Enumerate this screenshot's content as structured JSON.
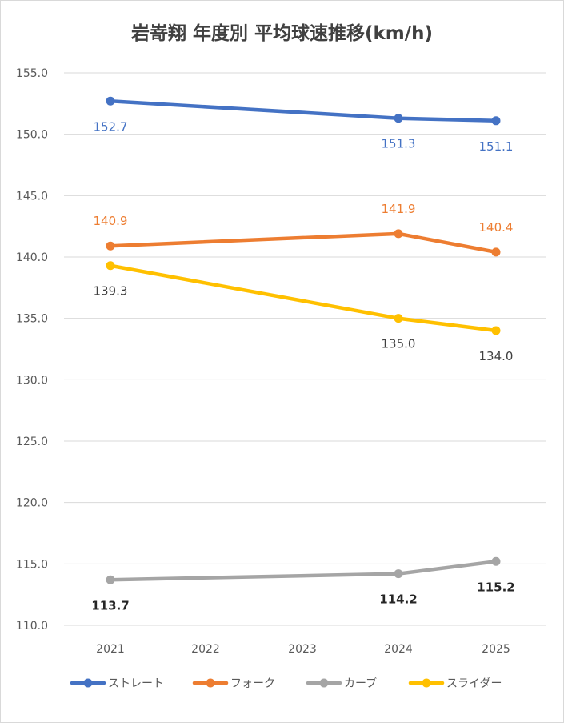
{
  "chart_data": {
    "type": "line",
    "title": "岩嵜翔 年度別 平均球速推移(km/h)",
    "categories": [
      "2021",
      "2022",
      "2023",
      "2024",
      "2025"
    ],
    "ylim": [
      110.0,
      155.0
    ],
    "yticks": [
      "110.0",
      "115.0",
      "120.0",
      "125.0",
      "130.0",
      "135.0",
      "140.0",
      "145.0",
      "150.0",
      "155.0"
    ],
    "grid": true,
    "legend_position": "bottom",
    "series": [
      {
        "name": "ストレート",
        "color": "#4472C4",
        "label_color": "#4472C4",
        "label_bold": false,
        "label_pos": "below",
        "values": [
          152.7,
          null,
          null,
          151.3,
          151.1
        ],
        "labels": [
          "152.7",
          "",
          "",
          "151.3",
          "151.1"
        ]
      },
      {
        "name": "フォーク",
        "color": "#ED7D31",
        "label_color": "#ED7D31",
        "label_bold": false,
        "label_pos": "above",
        "values": [
          140.9,
          null,
          null,
          141.9,
          140.4
        ],
        "labels": [
          "140.9",
          "",
          "",
          "141.9",
          "140.4"
        ]
      },
      {
        "name": "カーブ",
        "color": "#A5A5A5",
        "label_color": "#262626",
        "label_bold": true,
        "label_pos": "below",
        "values": [
          113.7,
          null,
          null,
          114.2,
          115.2
        ],
        "labels": [
          "113.7",
          "",
          "",
          "114.2",
          "115.2"
        ]
      },
      {
        "name": "スライダー",
        "color": "#FFC000",
        "label_color": "#404040",
        "label_bold": false,
        "label_pos": "below",
        "values": [
          139.3,
          null,
          null,
          135.0,
          134.0
        ],
        "labels": [
          "139.3",
          "",
          "",
          "135.0",
          "134.0"
        ]
      }
    ]
  }
}
